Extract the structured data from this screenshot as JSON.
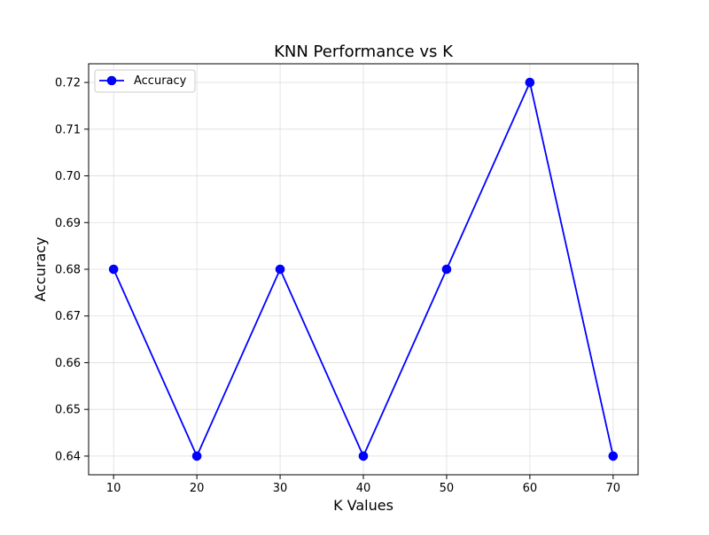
{
  "chart_data": {
    "type": "line",
    "title": "KNN Performance vs K",
    "xlabel": "K Values",
    "ylabel": "Accuracy",
    "x": [
      10,
      20,
      30,
      40,
      50,
      60,
      70
    ],
    "series": [
      {
        "name": "Accuracy",
        "values": [
          0.68,
          0.64,
          0.68,
          0.64,
          0.68,
          0.72,
          0.64
        ],
        "color": "#0000ff",
        "marker": "circle"
      }
    ],
    "xlim": [
      7,
      73
    ],
    "ylim": [
      0.636,
      0.724
    ],
    "xticks": [
      10,
      20,
      30,
      40,
      50,
      60,
      70
    ],
    "xtick_labels": [
      "10",
      "20",
      "30",
      "40",
      "50",
      "60",
      "70"
    ],
    "yticks": [
      0.64,
      0.65,
      0.66,
      0.67,
      0.68,
      0.69,
      0.7,
      0.71,
      0.72
    ],
    "ytick_labels": [
      "0.64",
      "0.65",
      "0.66",
      "0.67",
      "0.68",
      "0.69",
      "0.70",
      "0.71",
      "0.72"
    ],
    "grid": true,
    "legend": {
      "placement": "top-left",
      "entries": [
        "Accuracy"
      ]
    }
  }
}
